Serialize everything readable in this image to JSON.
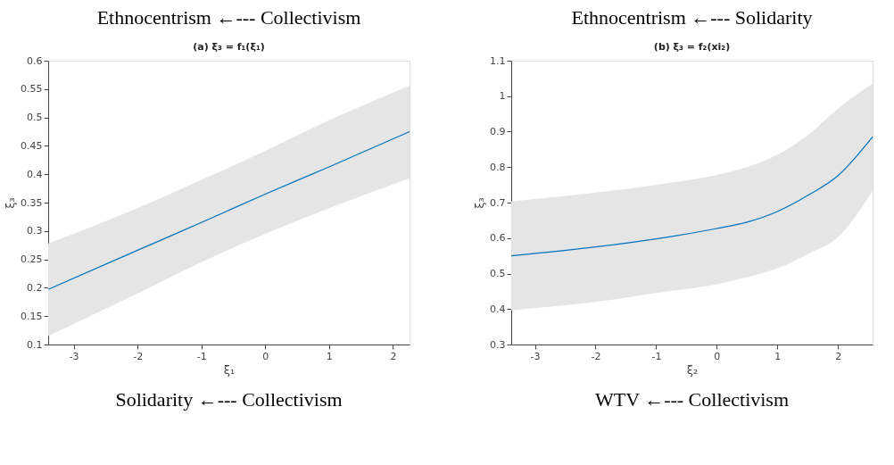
{
  "chart_data": [
    {
      "type": "line",
      "title": "(a) ξ₃ = f₁(ξ₁)",
      "xlabel": "ξ₁",
      "ylabel": "ξ₃",
      "annotations": [
        "Ethnocentrism ←--- Collectivism",
        "Solidarity ←--- Collectivism"
      ],
      "xlim": [
        -3.4,
        2.26
      ],
      "xticks": [
        -3,
        -2,
        -1,
        0,
        1,
        2
      ],
      "ylim": [
        0.1,
        0.6
      ],
      "yticks": [
        0.1,
        0.15,
        0.2,
        0.25,
        0.3,
        0.35,
        0.4,
        0.45,
        0.5,
        0.55,
        0.6
      ],
      "grid": false,
      "series": [
        {
          "color": "#0072bd",
          "x": [
            -3.4,
            -2,
            -1,
            0,
            1,
            2.26
          ],
          "values": [
            0.197,
            0.266,
            0.315,
            0.365,
            0.413,
            0.475
          ],
          "lower": [
            0.115,
            0.19,
            0.245,
            0.295,
            0.34,
            0.393
          ],
          "upper": [
            0.278,
            0.34,
            0.39,
            0.441,
            0.495,
            0.556
          ]
        }
      ]
    },
    {
      "type": "line",
      "title": "(b) ξ₃ = f₂(xi₂)",
      "xlabel": "ξ₂",
      "ylabel": "ξ₃",
      "annotations": [
        "Ethnocentrism ←--- Solidarity",
        "WTV ←--- Collectivism"
      ],
      "xlim": [
        -3.39,
        2.57
      ],
      "xticks": [
        -3,
        -2,
        -1,
        0,
        1,
        2
      ],
      "ylim": [
        0.3,
        1.1
      ],
      "yticks": [
        0.3,
        0.4,
        0.5,
        0.6,
        0.7,
        0.8,
        0.9,
        1,
        1.1
      ],
      "grid": false,
      "series": [
        {
          "color": "#0072bd",
          "x": [
            -3.39,
            -2,
            -1,
            0,
            0.5,
            1,
            1.5,
            2,
            2.57
          ],
          "values": [
            0.55,
            0.575,
            0.598,
            0.627,
            0.645,
            0.675,
            0.72,
            0.776,
            0.885
          ],
          "lower": [
            0.397,
            0.42,
            0.445,
            0.47,
            0.49,
            0.515,
            0.555,
            0.603,
            0.733
          ],
          "upper": [
            0.703,
            0.728,
            0.75,
            0.778,
            0.8,
            0.835,
            0.89,
            0.965,
            1.035
          ]
        }
      ]
    }
  ]
}
